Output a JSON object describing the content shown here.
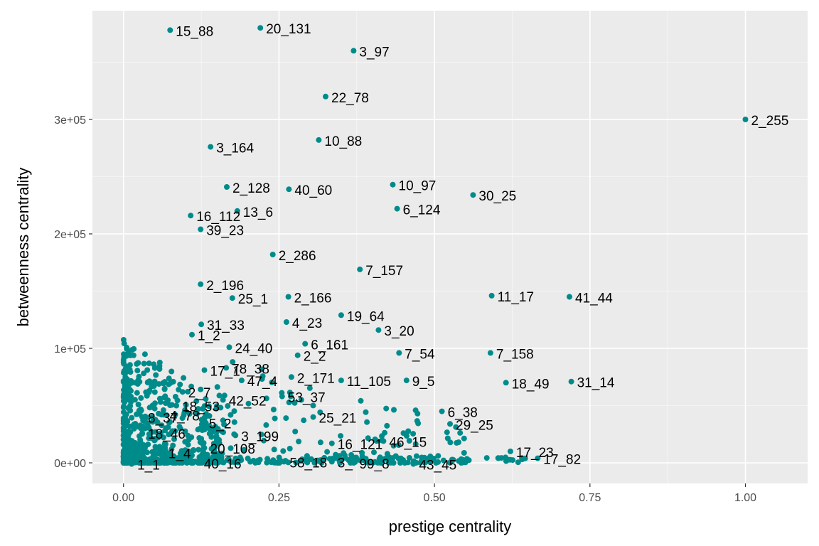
{
  "chart_data": {
    "type": "scatter",
    "xlabel": "prestige centrality",
    "ylabel": "betweenness centrality",
    "xlim": [
      -0.05,
      1.1
    ],
    "ylim": [
      -18000,
      395000
    ],
    "x_ticks": [
      0,
      0.25,
      0.5,
      0.75,
      1.0
    ],
    "x_tick_labels": [
      "0.00",
      "0.25",
      "0.50",
      "0.75",
      "1.00"
    ],
    "y_ticks": [
      0,
      100000,
      200000,
      300000
    ],
    "y_tick_labels": [
      "0e+00",
      "1e+05",
      "2e+05",
      "3e+05"
    ],
    "grid": true,
    "point_color": "#008b8b",
    "panel_color": "#ebebeb",
    "labeled_points": [
      {
        "label": "15_88",
        "x": 0.075,
        "y": 378000
      },
      {
        "label": "20_131",
        "x": 0.22,
        "y": 380000
      },
      {
        "label": "3_97",
        "x": 0.37,
        "y": 360000
      },
      {
        "label": "22_78",
        "x": 0.325,
        "y": 320000
      },
      {
        "label": "2_255",
        "x": 1.0,
        "y": 300000
      },
      {
        "label": "10_88",
        "x": 0.314,
        "y": 282000
      },
      {
        "label": "3_164",
        "x": 0.14,
        "y": 276000
      },
      {
        "label": "10_97",
        "x": 0.433,
        "y": 243000
      },
      {
        "label": "2_128",
        "x": 0.166,
        "y": 241000
      },
      {
        "label": "40_60",
        "x": 0.266,
        "y": 239000
      },
      {
        "label": "30_25",
        "x": 0.562,
        "y": 234000
      },
      {
        "label": "6_124",
        "x": 0.44,
        "y": 222000
      },
      {
        "label": "13_6",
        "x": 0.183,
        "y": 220000
      },
      {
        "label": "16_112",
        "x": 0.108,
        "y": 216000
      },
      {
        "label": "39_23",
        "x": 0.124,
        "y": 204000
      },
      {
        "label": "2_286",
        "x": 0.24,
        "y": 182000
      },
      {
        "label": "7_157",
        "x": 0.38,
        "y": 169000
      },
      {
        "label": "2_196",
        "x": 0.124,
        "y": 156000
      },
      {
        "label": "11_17",
        "x": 0.592,
        "y": 146000
      },
      {
        "label": "41_44",
        "x": 0.717,
        "y": 145000
      },
      {
        "label": "25_1",
        "x": 0.175,
        "y": 144000
      },
      {
        "label": "2_166",
        "x": 0.265,
        "y": 145000
      },
      {
        "label": "19_64",
        "x": 0.35,
        "y": 129000
      },
      {
        "label": "31_33",
        "x": 0.125,
        "y": 121000
      },
      {
        "label": "4_23",
        "x": 0.262,
        "y": 123000
      },
      {
        "label": "3_20",
        "x": 0.41,
        "y": 116000
      },
      {
        "label": "1_2",
        "x": 0.11,
        "y": 112000
      },
      {
        "label": "24_40",
        "x": 0.17,
        "y": 101000
      },
      {
        "label": "6_161",
        "x": 0.292,
        "y": 104000
      },
      {
        "label": "7_54",
        "x": 0.443,
        "y": 96000
      },
      {
        "label": "2_2",
        "x": 0.28,
        "y": 94000
      },
      {
        "label": "7_158",
        "x": 0.59,
        "y": 96000
      },
      {
        "label": "17_1",
        "x": 0.13,
        "y": 81000
      },
      {
        "label": "78_38",
        "x": 0.165,
        "y": 83000
      },
      {
        "label": "2_171",
        "x": 0.27,
        "y": 75000
      },
      {
        "label": "11_105",
        "x": 0.35,
        "y": 72000
      },
      {
        "label": "9_5",
        "x": 0.455,
        "y": 72000
      },
      {
        "label": "18_49",
        "x": 0.615,
        "y": 70000
      },
      {
        "label": "31_14",
        "x": 0.72,
        "y": 71000
      },
      {
        "label": "47_4",
        "x": 0.19,
        "y": 72000
      },
      {
        "label": "2_7",
        "x": 0.095,
        "y": 62000
      },
      {
        "label": "53_37",
        "x": 0.255,
        "y": 58000
      },
      {
        "label": "42_52",
        "x": 0.16,
        "y": 55000
      },
      {
        "label": "18_53",
        "x": 0.085,
        "y": 50000
      },
      {
        "label": "6_38",
        "x": 0.512,
        "y": 45000
      },
      {
        "label": "8_37",
        "x": 0.03,
        "y": 40000
      },
      {
        "label": "4_78",
        "x": 0.065,
        "y": 42000
      },
      {
        "label": "25_21",
        "x": 0.305,
        "y": 40000
      },
      {
        "label": "5_2",
        "x": 0.128,
        "y": 35000
      },
      {
        "label": "29_25",
        "x": 0.525,
        "y": 34000
      },
      {
        "label": "18_46",
        "x": 0.03,
        "y": 26000
      },
      {
        "label": "3_199",
        "x": 0.18,
        "y": 24000
      },
      {
        "label": "16_121",
        "x": 0.335,
        "y": 17000
      },
      {
        "label": "46_15",
        "x": 0.418,
        "y": 19000
      },
      {
        "label": "20_108",
        "x": 0.13,
        "y": 13000
      },
      {
        "label": "1_4",
        "x": 0.063,
        "y": 9000
      },
      {
        "label": "17_23",
        "x": 0.622,
        "y": 10000
      },
      {
        "label": "17_82",
        "x": 0.666,
        "y": 4000
      },
      {
        "label": "1_1",
        "x": 0.013,
        "y": -1000
      },
      {
        "label": "40_16",
        "x": 0.12,
        "y": 0
      },
      {
        "label": "58_18",
        "x": 0.258,
        "y": 1000
      },
      {
        "label": "3_",
        "x": 0.335,
        "y": 1000
      },
      {
        "label": "99_8",
        "x": 0.37,
        "y": 0
      },
      {
        "label": "43_45",
        "x": 0.466,
        "y": -1000
      }
    ]
  }
}
